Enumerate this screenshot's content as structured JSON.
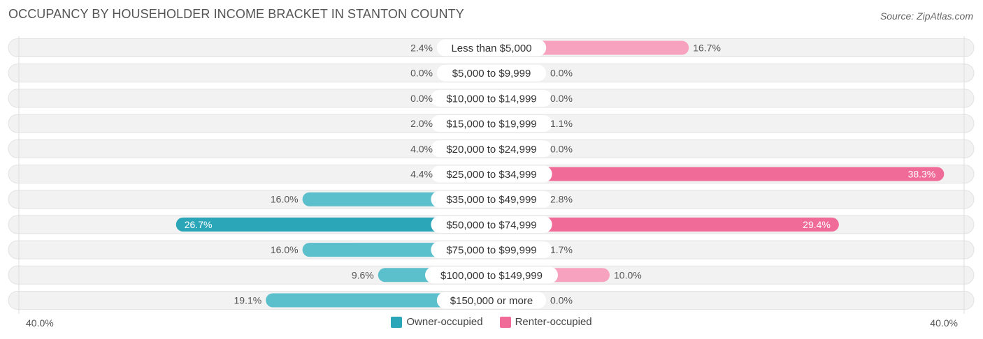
{
  "title": "OCCUPANCY BY HOUSEHOLDER INCOME BRACKET IN STANTON COUNTY",
  "source": "Source: ZipAtlas.com",
  "colors": {
    "owner": "#5bbfcc",
    "owner_strong": "#2ba5b8",
    "renter": "#f7a3c0",
    "renter_strong": "#f06b98",
    "track": "#efefef"
  },
  "chart_data": {
    "type": "bar",
    "orientation": "horizontal-diverging",
    "categories": [
      "Less than $5,000",
      "$5,000 to $9,999",
      "$10,000 to $14,999",
      "$15,000 to $19,999",
      "$20,000 to $24,999",
      "$25,000 to $34,999",
      "$35,000 to $49,999",
      "$50,000 to $74,999",
      "$75,000 to $99,999",
      "$100,000 to $149,999",
      "$150,000 or more"
    ],
    "series": [
      {
        "name": "Owner-occupied",
        "values": [
          2.4,
          0.0,
          0.0,
          2.0,
          4.0,
          4.4,
          16.0,
          26.7,
          16.0,
          9.6,
          19.1
        ],
        "labels": [
          "2.4%",
          "0.0%",
          "0.0%",
          "2.0%",
          "4.0%",
          "4.4%",
          "16.0%",
          "26.7%",
          "16.0%",
          "9.6%",
          "19.1%"
        ]
      },
      {
        "name": "Renter-occupied",
        "values": [
          16.7,
          0.0,
          0.0,
          1.1,
          0.0,
          38.3,
          2.8,
          29.4,
          1.7,
          10.0,
          0.0
        ],
        "labels": [
          "16.7%",
          "0.0%",
          "0.0%",
          "1.1%",
          "0.0%",
          "38.3%",
          "2.8%",
          "29.4%",
          "1.7%",
          "10.0%",
          "0.0%"
        ]
      }
    ],
    "axis": {
      "min_label": "40.0%",
      "max_label": "40.0%",
      "max": 40.0
    },
    "legend": [
      "Owner-occupied",
      "Renter-occupied"
    ]
  }
}
